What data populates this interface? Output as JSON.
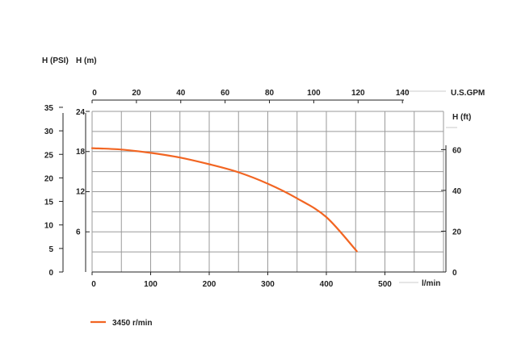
{
  "chart_data": {
    "type": "line",
    "axes": {
      "psi": {
        "label": "H (PSI)",
        "ticks": [
          0,
          5,
          10,
          15,
          20,
          25,
          30,
          35
        ]
      },
      "m": {
        "label": "H (m)",
        "ticks": [
          6,
          12,
          18,
          24
        ],
        "range": [
          0,
          24
        ]
      },
      "ft": {
        "label": "H (ft)",
        "ticks": [
          0,
          20,
          40,
          60
        ]
      },
      "gpm": {
        "label": "U.S.GPM",
        "ticks": [
          0,
          20,
          40,
          60,
          80,
          100,
          120,
          140
        ]
      },
      "lmin": {
        "label": "l/min",
        "ticks": [
          0,
          100,
          200,
          300,
          400,
          500
        ],
        "range": [
          0,
          600
        ]
      }
    },
    "grid": true,
    "series": [
      {
        "name": "3450 r/min",
        "color": "#f26522",
        "x": [
          0,
          50,
          100,
          150,
          200,
          250,
          300,
          350,
          400,
          452
        ],
        "y": [
          18.5,
          18.3,
          17.8,
          17.1,
          16.1,
          14.9,
          13.2,
          11.0,
          8.2,
          3.1
        ]
      }
    ],
    "legend": "bottom-left"
  }
}
